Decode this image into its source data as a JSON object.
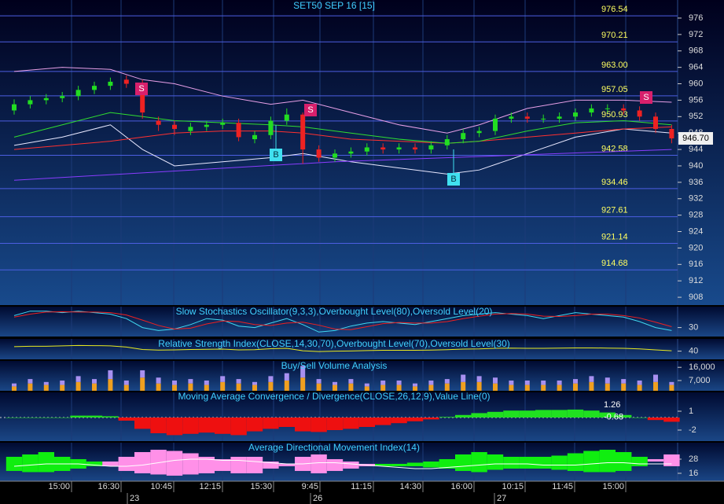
{
  "chart_data": [
    {
      "type": "candlestick",
      "title": "SET50 SEP 16  [15]",
      "open": [
        953.5,
        955,
        956,
        956.5,
        957,
        958.5,
        959.5,
        961,
        960,
        951,
        950,
        948.5,
        949.5,
        950,
        950.5,
        946.5,
        947.5,
        951,
        952.5,
        944,
        942,
        943,
        943.5,
        944.5,
        944,
        944.5,
        944,
        945,
        946.5,
        948,
        948.5,
        951.5,
        952,
        951.5,
        951.5,
        952,
        953,
        954,
        954,
        953.5,
        952,
        949
      ],
      "high": [
        956.2,
        957,
        957.5,
        958,
        959.5,
        960.5,
        961.5,
        962,
        961,
        952,
        951,
        950.5,
        951,
        951.5,
        951.5,
        948.5,
        952,
        954,
        953,
        945,
        944,
        944.5,
        945.5,
        945.5,
        945.5,
        945.5,
        946,
        947.5,
        949,
        949.5,
        952.5,
        953,
        953,
        952.5,
        953,
        954,
        955,
        955,
        955,
        954.5,
        953,
        950
      ],
      "low": [
        952.5,
        954,
        955,
        955.5,
        956,
        957.5,
        958.5,
        959,
        951.5,
        948.5,
        947.5,
        947.5,
        948.5,
        949,
        946,
        945.5,
        946.5,
        950,
        940.5,
        941,
        941,
        942,
        942.5,
        943,
        943,
        943,
        943,
        944,
        945.5,
        947,
        947.5,
        950.5,
        950.5,
        950.5,
        950.5,
        951,
        952,
        953,
        952.5,
        951,
        948,
        945.5
      ],
      "close": [
        955,
        956,
        956.5,
        957,
        958.5,
        959.5,
        960.5,
        960,
        953,
        950,
        949,
        949.5,
        950,
        950.5,
        947,
        947.5,
        951,
        952.5,
        944,
        942,
        943,
        943.5,
        944.5,
        944,
        944.5,
        944,
        945,
        946.5,
        948,
        948.5,
        951.5,
        952,
        951.5,
        951.5,
        952,
        953,
        954,
        954,
        953.5,
        952,
        949,
        946.7
      ],
      "up_color": "#22dd22",
      "down_color": "#ee2222",
      "lines": [
        {
          "color": "#e8a0e8",
          "x": [
            0,
            3,
            6,
            8,
            10,
            13,
            16,
            18,
            21,
            24,
            27,
            29,
            32,
            35,
            38,
            41
          ],
          "values": [
            963,
            964,
            963.5,
            961,
            960,
            957,
            955,
            956,
            953,
            950,
            948,
            950,
            954,
            956,
            956,
            955.5
          ]
        },
        {
          "color": "#e8e8ff",
          "x": [
            0,
            3,
            6,
            8,
            10,
            13,
            16,
            18,
            21,
            24,
            27,
            29,
            32,
            35,
            38,
            41
          ],
          "values": [
            945,
            947,
            950,
            944,
            940,
            941,
            942,
            943,
            941,
            939.5,
            938,
            939,
            943,
            947,
            949,
            948
          ]
        },
        {
          "color": "#ff3030",
          "x": [
            0,
            3,
            6,
            8,
            10,
            13,
            16,
            18,
            21,
            24,
            27,
            29,
            32,
            35,
            38,
            41
          ],
          "values": [
            944,
            945,
            946,
            947,
            948,
            948.5,
            948.5,
            948,
            946.5,
            946,
            945.5,
            946,
            947,
            948,
            949,
            949.5
          ]
        },
        {
          "color": "#30dd30",
          "x": [
            0,
            3,
            6,
            8,
            10,
            13,
            16,
            18,
            21,
            24,
            27,
            29,
            32,
            35,
            38,
            41
          ],
          "values": [
            947,
            950,
            953,
            952,
            951,
            950.5,
            950,
            949.5,
            948,
            946.5,
            945.5,
            946,
            948.5,
            950.5,
            951,
            950
          ]
        },
        {
          "color": "#8a3cff",
          "x": [
            0,
            20,
            41
          ],
          "values": [
            936.5,
            941,
            944
          ]
        }
      ],
      "levels": [
        976.54,
        970.21,
        {
          "value": 963,
          "label": "963.00"
        },
        957.05,
        950.93,
        942.58,
        934.46,
        927.61,
        921.14,
        914.68
      ],
      "current_price": {
        "value": 946.7,
        "label": "946.70"
      },
      "signals": [
        "S",
        "B",
        "S",
        "B",
        "S"
      ],
      "time_labels": [
        "15:00",
        "16:30",
        "10:45",
        "12:15",
        "15:30",
        "9:45",
        "11:15",
        "14:30",
        "16:00",
        "10:15",
        "11:45",
        "15:00"
      ],
      "date_labels": [
        "23",
        "26",
        "27"
      ],
      "ylim": [
        906.1,
        980.4
      ],
      "yticks": [
        908,
        912,
        916,
        920,
        924,
        928,
        932,
        936,
        940,
        944,
        948,
        952,
        956,
        960,
        964,
        968,
        972,
        976
      ]
    },
    {
      "type": "line",
      "title": "Slow Stochastics Oscillator(9,3,3),Overbought Level(80),Oversold Level(20)",
      "series": [
        {
          "color": "#40d8f0",
          "values": [
            70,
            85,
            85,
            80,
            85,
            80,
            75,
            60,
            30,
            20,
            25,
            40,
            60,
            55,
            35,
            30,
            45,
            60,
            40,
            15,
            20,
            35,
            45,
            50,
            45,
            40,
            50,
            60,
            70,
            75,
            80,
            75,
            70,
            60,
            70,
            80,
            75,
            70,
            65,
            50,
            30,
            20
          ]
        },
        {
          "color": "#ee2020",
          "values": [
            65,
            75,
            82,
            83,
            82,
            82,
            80,
            72,
            55,
            37,
            25,
            28,
            42,
            52,
            50,
            40,
            37,
            45,
            48,
            38,
            25,
            23,
            33,
            43,
            47,
            45,
            45,
            50,
            60,
            68,
            75,
            77,
            75,
            68,
            67,
            70,
            75,
            75,
            70,
            62,
            48,
            33
          ]
        }
      ],
      "ylim": [
        0,
        100
      ],
      "yticks": [
        30
      ]
    },
    {
      "type": "line",
      "title": "Relative Strength Index(CLOSE,14,30,70),Overbought Level(70),Oversold Level(30)",
      "series": [
        {
          "color": "#e8e820",
          "values": [
            62,
            64,
            64,
            66,
            68,
            67,
            66,
            60,
            48,
            45,
            46,
            48,
            49,
            50,
            46,
            47,
            52,
            54,
            42,
            38,
            40,
            41,
            43,
            44,
            44,
            44,
            45,
            47,
            50,
            51,
            54,
            55,
            54,
            54,
            55,
            56,
            56,
            55,
            54,
            51,
            46,
            42
          ]
        }
      ],
      "ylim": [
        0,
        100
      ],
      "yticks": [
        40
      ]
    },
    {
      "type": "stacked-bar",
      "title": "Buy/Sell Volume Analysis",
      "series": [
        {
          "color": "#f0a020",
          "values": [
            3000,
            5000,
            4000,
            4000,
            6000,
            5000,
            8000,
            4000,
            9000,
            5000,
            4000,
            5000,
            4000,
            6000,
            5000,
            4000,
            6000,
            7000,
            9000,
            5000,
            4000,
            5000,
            3000,
            4000,
            4000,
            3000,
            4000,
            5000,
            6000,
            6000,
            5000,
            4000,
            4000,
            4000,
            4000,
            5000,
            6000,
            5000,
            5000,
            4000,
            6000,
            4000
          ]
        },
        {
          "color": "#a890f0",
          "values": [
            2000,
            3000,
            2000,
            3000,
            4000,
            3000,
            6000,
            3000,
            5000,
            4000,
            3000,
            3000,
            3000,
            4000,
            3000,
            2000,
            4000,
            5000,
            8000,
            3000,
            2000,
            3000,
            2000,
            3000,
            3000,
            2000,
            3000,
            3000,
            5000,
            4000,
            4000,
            3000,
            3000,
            3000,
            3000,
            3000,
            4000,
            4000,
            3000,
            3000,
            5000,
            2000
          ]
        }
      ],
      "ylim": [
        0,
        20400
      ],
      "yticks": [
        {
          "value": 7000,
          "label": "7,000"
        },
        {
          "value": 16000,
          "label": "16,000"
        }
      ]
    },
    {
      "type": "histogram",
      "title": "Moving Average Convergence / Divergence(CLOSE,26,12,9),Value Line(0)",
      "values": [
        0,
        0,
        0,
        0,
        0.3,
        0.3,
        0.2,
        -0.5,
        -1.8,
        -2.5,
        -2.8,
        -2.6,
        -2.4,
        -2.6,
        -2.8,
        -2.2,
        -1.8,
        -1.5,
        -2.2,
        -2.3,
        -2,
        -1.8,
        -1.5,
        -1.2,
        -0.9,
        -0.6,
        -0.3,
        0.1,
        0.4,
        0.7,
        0.9,
        1.1,
        1.1,
        1.2,
        1.2,
        1.26,
        1.1,
        0.8,
        0.4,
        0,
        -0.4,
        -0.68
      ],
      "up_color": "#20e020",
      "down_color": "#ee1010",
      "last_values": [
        1.26,
        -0.68
      ],
      "ylim": [
        -3.75,
        4
      ],
      "yticks": [
        -2,
        1
      ]
    },
    {
      "type": "band",
      "title": "Average Directional Movement Index(14)",
      "series": [
        {
          "color": "#10ee10",
          "values": [
            30,
            32,
            34,
            30,
            28,
            26,
            22,
            18,
            16,
            15,
            14,
            15,
            16,
            18,
            16,
            16,
            20,
            22,
            18,
            16,
            18,
            20,
            22,
            24,
            24,
            25,
            26,
            28,
            32,
            34,
            32,
            30,
            30,
            30,
            31,
            33,
            35,
            36,
            34,
            30,
            26,
            22
          ]
        },
        {
          "color": "#ff90e8",
          "values": [
            18,
            17,
            17,
            18,
            20,
            22,
            26,
            30,
            34,
            36,
            35,
            33,
            30,
            28,
            30,
            30,
            26,
            24,
            30,
            32,
            28,
            26,
            24,
            22,
            22,
            22,
            21,
            20,
            18,
            17,
            19,
            20,
            20,
            20,
            19,
            18,
            17,
            17,
            18,
            22,
            28,
            32
          ]
        },
        {
          "color": "#ffffff",
          "values": [
            22,
            23,
            24,
            24,
            24,
            23,
            22,
            22,
            23,
            25,
            27,
            28,
            28,
            27,
            27,
            26,
            25,
            24,
            24,
            25,
            25,
            24,
            23,
            22,
            21,
            20,
            20,
            21,
            22,
            23,
            24,
            24,
            24,
            23,
            23,
            23,
            24,
            25,
            25,
            24,
            24,
            24
          ]
        }
      ],
      "ylim": [
        9.3,
        42
      ],
      "yticks": [
        16,
        28
      ]
    }
  ]
}
